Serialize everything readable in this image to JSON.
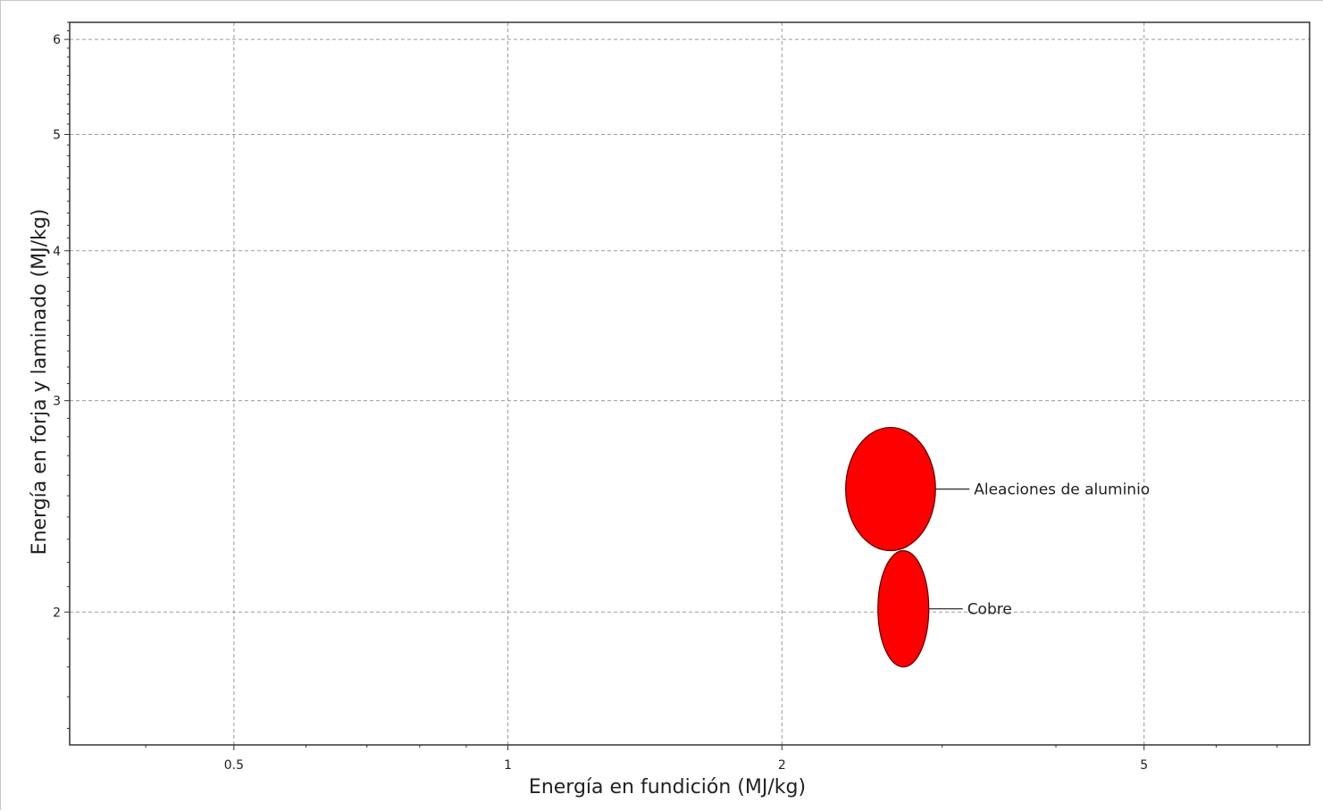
{
  "chart_data": {
    "type": "scatter",
    "title": "",
    "xlabel": "Energía en fundición (MJ/kg)",
    "ylabel": "Energía en forja y laminado (MJ/kg)",
    "x_scale": "log",
    "y_scale": "log",
    "xlim": [
      0.33,
      7.6
    ],
    "ylim": [
      1.55,
      6.2
    ],
    "x_ticks": [
      0.5,
      1,
      2,
      5
    ],
    "x_tick_labels": [
      "0.5",
      "1",
      "2",
      "5"
    ],
    "y_ticks": [
      2,
      3,
      4,
      5,
      6
    ],
    "y_tick_labels": [
      "2",
      "3",
      "4",
      "5",
      "6"
    ],
    "grid": true,
    "bubble_color": "#ff0000",
    "points": [
      {
        "label": "Aleaciones de aluminio",
        "x_range": [
          2.35,
          2.95
        ],
        "y_range": [
          2.25,
          2.85
        ]
      },
      {
        "label": "Cobre",
        "x_range": [
          2.55,
          2.9
        ],
        "y_range": [
          1.8,
          2.25
        ]
      }
    ]
  }
}
